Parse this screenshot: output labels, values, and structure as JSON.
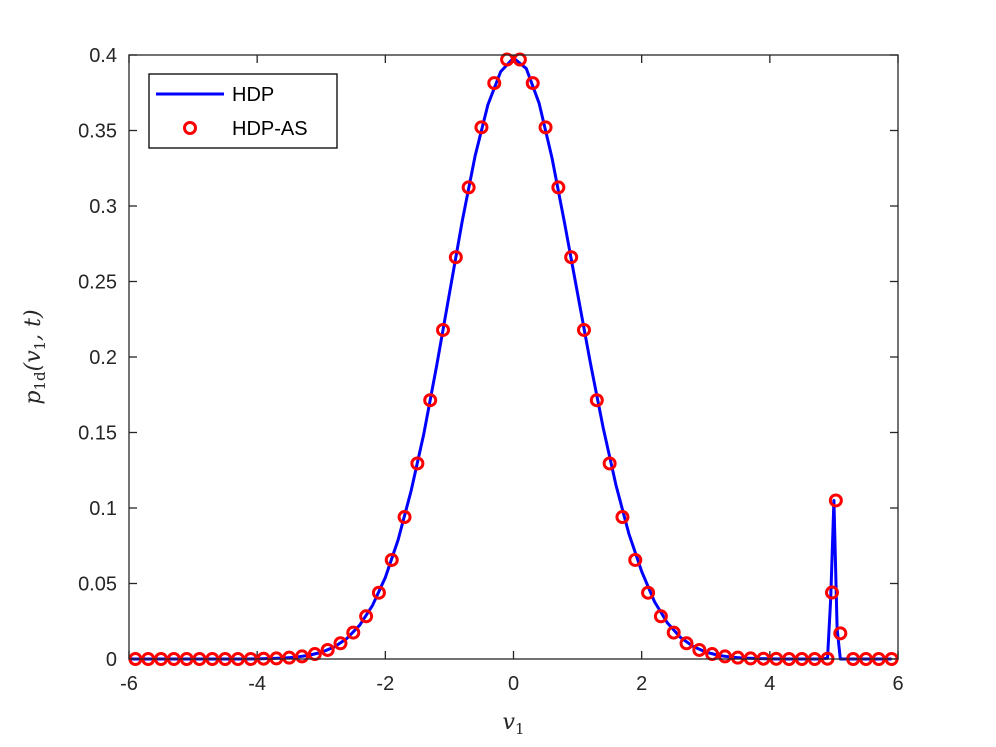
{
  "chart_data": {
    "type": "line",
    "title": "",
    "xlabel": "v_1",
    "ylabel": "p_{1d}(v_1, t)",
    "xlim": [
      -6,
      6
    ],
    "ylim": [
      0,
      0.4
    ],
    "xticks": [
      -6,
      -4,
      -2,
      0,
      2,
      4,
      6
    ],
    "xtick_labels": [
      "-6",
      "-4",
      "-2",
      "0",
      "2",
      "4",
      "6"
    ],
    "yticks": [
      0,
      0.05,
      0.1,
      0.15,
      0.2,
      0.25,
      0.3,
      0.35,
      0.4
    ],
    "ytick_labels": [
      "0",
      "0.05",
      "0.1",
      "0.15",
      "0.2",
      "0.25",
      "0.3",
      "0.35",
      "0.4"
    ],
    "grid": false,
    "legend_position": "top-left",
    "series": [
      {
        "name": "HDP",
        "style": "line",
        "color": "#0000ff",
        "x": [
          -6,
          -5.8,
          -5.6,
          -5.4,
          -5.2,
          -5,
          -4.8,
          -4.6,
          -4.4,
          -4.2,
          -4,
          -3.8,
          -3.6,
          -3.4,
          -3.2,
          -3,
          -2.8,
          -2.6,
          -2.4,
          -2.2,
          -2,
          -1.8,
          -1.6,
          -1.4,
          -1.2,
          -1,
          -0.8,
          -0.6,
          -0.4,
          -0.2,
          0,
          0.2,
          0.4,
          0.6,
          0.8,
          1,
          1.2,
          1.4,
          1.6,
          1.8,
          2,
          2.2,
          2.4,
          2.6,
          2.8,
          3,
          3.2,
          3.4,
          3.6,
          3.8,
          4,
          4.2,
          4.4,
          4.6,
          4.8,
          4.9,
          4.95,
          5.0,
          5.05,
          5.1,
          5.2,
          5.4,
          5.6,
          5.8,
          5.9
        ],
        "y": [
          0,
          0,
          0,
          0,
          0,
          0,
          0,
          0,
          0,
          0,
          0.0001,
          0.0003,
          0.0006,
          0.0012,
          0.0024,
          0.0044,
          0.0079,
          0.0136,
          0.0224,
          0.0355,
          0.054,
          0.079,
          0.111,
          0.149,
          0.194,
          0.242,
          0.29,
          0.333,
          0.367,
          0.389,
          0.398,
          0.391,
          0.368,
          0.332,
          0.288,
          0.242,
          0.196,
          0.153,
          0.115,
          0.083,
          0.058,
          0.038,
          0.024,
          0.0145,
          0.0084,
          0.0046,
          0.0024,
          0.0012,
          0.0006,
          0.0003,
          0.0001,
          0,
          0,
          0,
          0,
          0.0005,
          0.04,
          0.105,
          0.02,
          0,
          0,
          0,
          0,
          0,
          0
        ]
      },
      {
        "name": "HDP-AS",
        "style": "markers",
        "color": "#ff0000",
        "x": [
          -5.9,
          -5.7,
          -5.5,
          -5.3,
          -5.1,
          -4.9,
          -4.7,
          -4.5,
          -4.3,
          -4.1,
          -3.9,
          -3.7,
          -3.5,
          -3.3,
          -3.1,
          -2.9,
          -2.7,
          -2.5,
          -2.3,
          -2.1,
          -1.9,
          -1.7,
          -1.5,
          -1.3,
          -1.1,
          -0.9,
          -0.7,
          -0.5,
          -0.3,
          -0.1,
          0.1,
          0.3,
          0.5,
          0.7,
          0.9,
          1.1,
          1.3,
          1.5,
          1.7,
          1.9,
          2.1,
          2.3,
          2.5,
          2.7,
          2.9,
          3.1,
          3.3,
          3.5,
          3.7,
          3.9,
          4.1,
          4.3,
          4.5,
          4.7,
          4.9,
          4.97,
          5.03,
          5.1,
          5.3,
          5.5,
          5.7,
          5.9
        ],
        "y": [
          0,
          0,
          0,
          0,
          0,
          0,
          0,
          0,
          0,
          0,
          0.0002,
          0.0004,
          0.0009,
          0.0017,
          0.0033,
          0.006,
          0.0104,
          0.0175,
          0.0283,
          0.0439,
          0.0656,
          0.094,
          0.1295,
          0.1714,
          0.2179,
          0.2661,
          0.3123,
          0.3521,
          0.3814,
          0.397,
          0.397,
          0.3814,
          0.3521,
          0.3123,
          0.2661,
          0.2179,
          0.1714,
          0.1295,
          0.094,
          0.0656,
          0.0439,
          0.0283,
          0.0175,
          0.0104,
          0.006,
          0.0033,
          0.0017,
          0.0009,
          0.0004,
          0.0002,
          0.0001,
          0,
          0,
          0,
          0.0002,
          0.044,
          0.105,
          0.017,
          0,
          0,
          0,
          0
        ]
      }
    ]
  }
}
